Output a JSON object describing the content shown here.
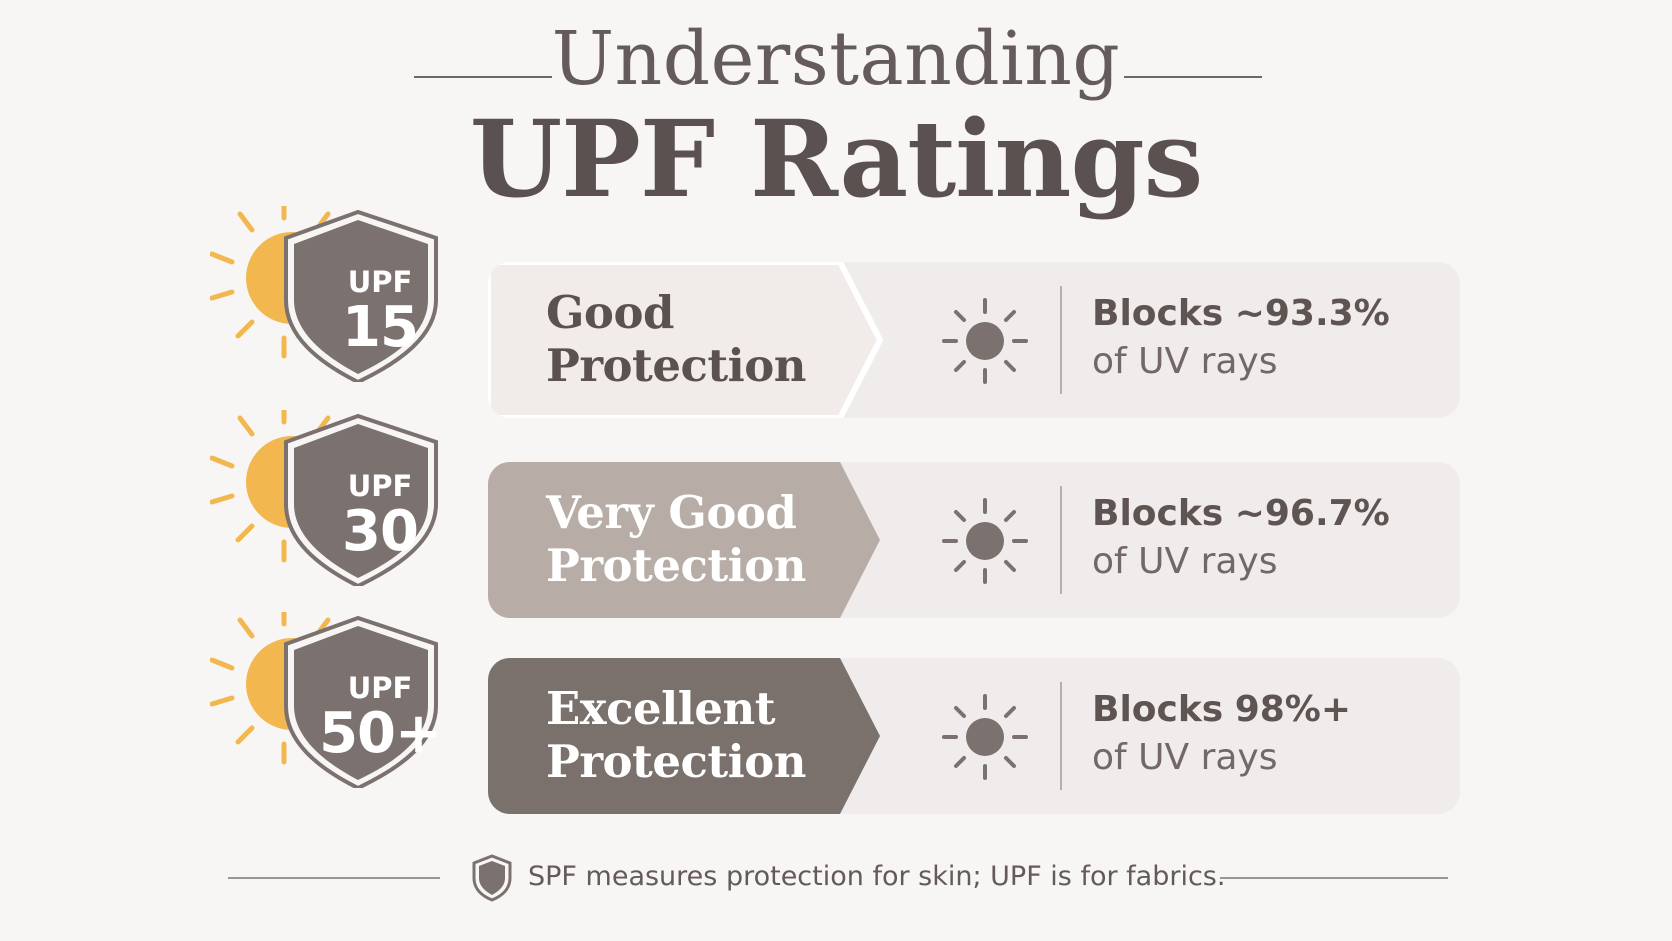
{
  "title": {
    "top": "Understanding",
    "main": "UPF Ratings"
  },
  "ratings": [
    {
      "badge_prefix": "UPF",
      "badge_value": "15",
      "label_line1": "Good",
      "label_line2": "Protection",
      "blocks_word": "Blocks",
      "blocks_value": "~93.3%",
      "blocks_suffix": "of UV rays",
      "accent_color": "#f0ecea",
      "label_color": "#5b5150"
    },
    {
      "badge_prefix": "UPF",
      "badge_value": "30",
      "label_line1": "Very Good",
      "label_line2": "Protection",
      "blocks_word": "Blocks",
      "blocks_value": "~96.7%",
      "blocks_suffix": "of UV rays",
      "accent_color": "#b7aca6",
      "label_color": "#ffffff"
    },
    {
      "badge_prefix": "UPF",
      "badge_value": "50+",
      "label_line1": "Excellent",
      "label_line2": "Protection",
      "blocks_word": "Blocks",
      "blocks_value": "98%+",
      "blocks_suffix": "of UV rays",
      "accent_color": "#7a706c",
      "label_color": "#ffffff"
    }
  ],
  "footer": {
    "text": "SPF measures protection for skin; UPF is for fabrics.",
    "icon": "shield-icon"
  },
  "colors": {
    "sun": "#f2b74f",
    "shield": "#7b716e",
    "sun_icon": "#7b716e",
    "card_bg": "#f0eceb"
  }
}
